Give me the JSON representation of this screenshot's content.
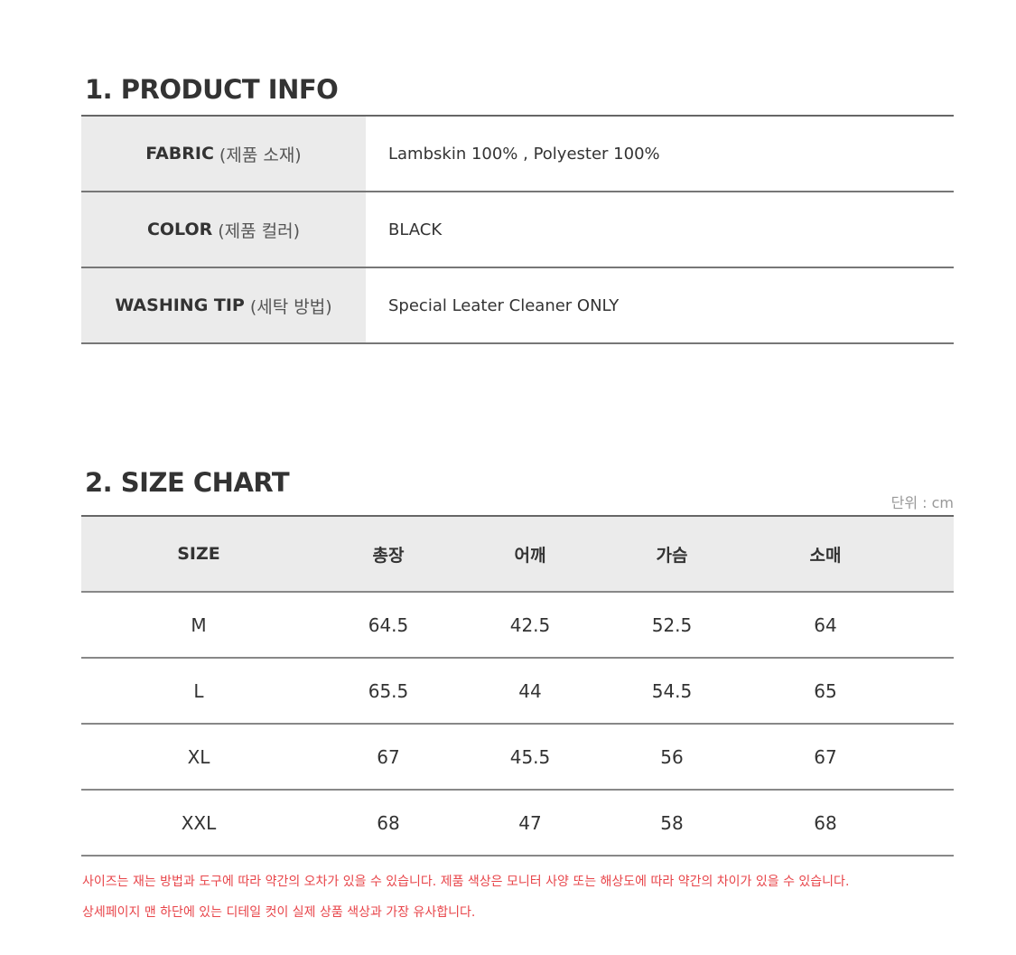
{
  "product_info": {
    "title": "1. PRODUCT INFO",
    "rows": [
      {
        "label": "FABRIC",
        "label_ko": "(제품 소재)",
        "value": "Lambskin 100% , Polyester 100%"
      },
      {
        "label": "COLOR",
        "label_ko": "(제품 컬러)",
        "value": "BLACK"
      },
      {
        "label": "WASHING TIP",
        "label_ko": "(세탁 방법)",
        "value": "Special Leater Cleaner ONLY"
      }
    ]
  },
  "size_chart": {
    "title": "2. SIZE CHART",
    "unit": "단위 : cm",
    "headers": [
      "SIZE",
      "총장",
      "어깨",
      "가슴",
      "소매"
    ],
    "rows": [
      [
        "M",
        "64.5",
        "42.5",
        "52.5",
        "64"
      ],
      [
        "L",
        "65.5",
        "44",
        "54.5",
        "65"
      ],
      [
        "XL",
        "67",
        "45.5",
        "56",
        "67"
      ],
      [
        "XXL",
        "68",
        "47",
        "58",
        "68"
      ]
    ]
  },
  "notes": [
    "사이즈는 재는 방법과 도구에 따라 약간의 오차가 있을 수 있습니다. 제품 색상은 모니터 사양 또는 해상도에 따라 약간의 차이가 있을 수 있습니다.",
    "상세페이지 맨 하단에 있는 디테일 컷이 실제 상품 색상과 가장 유사합니다."
  ],
  "colors": {
    "note": "#e8454a",
    "header_bg": "#ebebeb"
  }
}
